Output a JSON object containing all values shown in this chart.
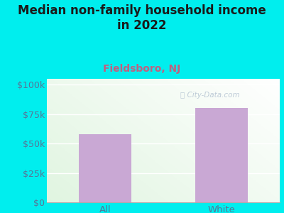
{
  "title": "Median non-family household income\nin 2022",
  "subtitle": "Fieldsboro, NJ",
  "categories": [
    "All",
    "White"
  ],
  "values": [
    58000,
    80000
  ],
  "bar_color": "#c9a8d4",
  "background_color": "#00EEEE",
  "title_color": "#1a1a1a",
  "subtitle_color": "#c06080",
  "tick_color": "#557799",
  "yticks": [
    0,
    25000,
    50000,
    75000,
    100000
  ],
  "ytick_labels": [
    "$0",
    "$25k",
    "$50k",
    "$75k",
    "$100k"
  ],
  "ylim": [
    0,
    105000
  ],
  "watermark": "City-Data.com",
  "watermark_color": "#aabbcc",
  "title_fontsize": 12,
  "subtitle_fontsize": 10
}
